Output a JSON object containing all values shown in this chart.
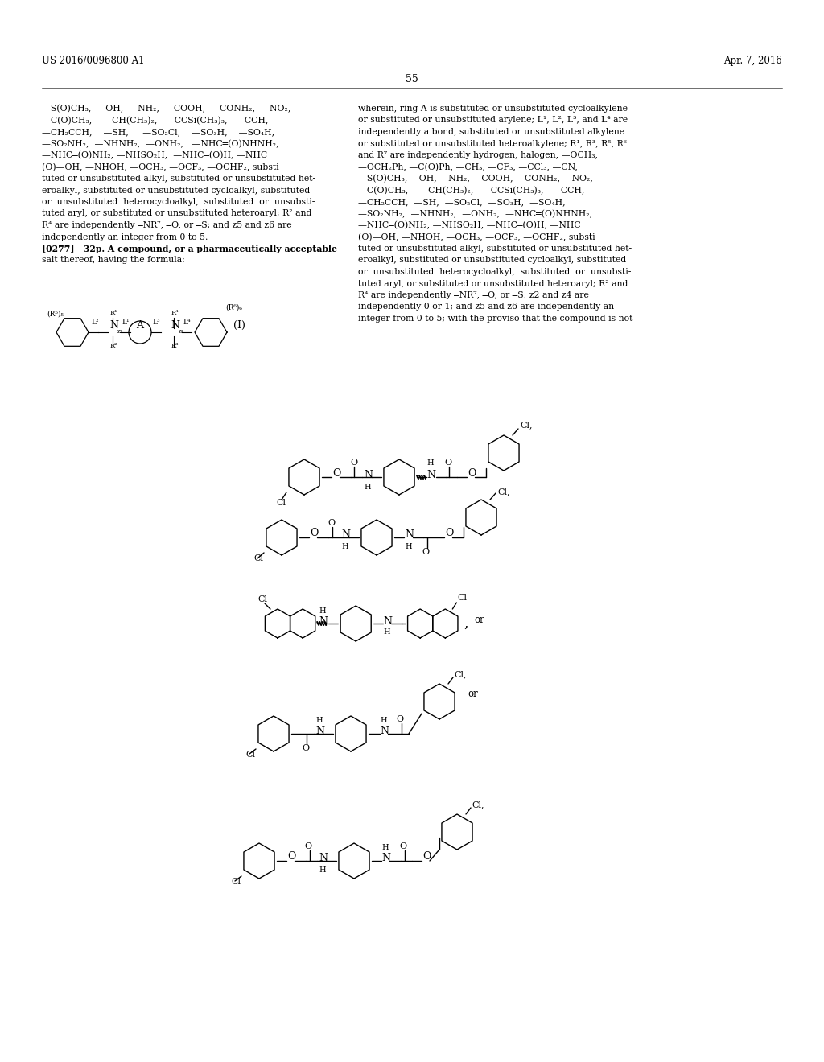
{
  "header_left": "US 2016/0096800 A1",
  "header_right": "Apr. 7, 2016",
  "page_number": "55",
  "background_color": "#ffffff",
  "text_color": "#000000",
  "left_col_lines": [
    "—S(O)CH₃,  —OH,  —NH₂,  —COOH,  —CONH₂,  —NO₂,",
    "—C(O)CH₃,    —CH(CH₃)₂,   —CCSi(CH₃)₃,   —CCH,",
    "—CH₂CCH,    —SH,     —SO₂Cl,    —SO₃H,    —SO₄H,",
    "—SO₂NH₂,  —NHNH₂,  —ONH₂,   —NHC═(O)NHNH₂,",
    "—NHC═(O)NH₂, —NHSO₂H,  —NHC═(O)H, —NHC",
    "(O)—OH, —NHOH, —OCH₃, —OCF₃, —OCHF₂, substi-",
    "tuted or unsubstituted alkyl, substituted or unsubstituted het-",
    "eroalkyl, substituted or unsubstituted cycloalkyl, substituted",
    "or  unsubstituted  heterocycloalkyl,  substituted  or  unsubsti-",
    "tuted aryl, or substituted or unsubstituted heteroaryl; R² and",
    "R⁴ are independently ═NR⁷, ═O, or ═S; and z5 and z6 are",
    "independently an integer from 0 to 5.",
    "[0277]   32p. A compound, or a pharmaceutically acceptable",
    "salt thereof, having the formula:"
  ],
  "right_col_lines": [
    "wherein, ring A is substituted or unsubstituted cycloalkylene",
    "or substituted or unsubstituted arylene; L¹, L², L³, and L⁴ are",
    "independently a bond, substituted or unsubstituted alkylene",
    "or substituted or unsubstituted heteroalkylene; R¹, R³, R⁵, R⁶",
    "and R⁷ are independently hydrogen, halogen, —OCH₃,",
    "—OCH₂Ph, —C(O)Ph, —CH₃, —CF₃, —CCl₃, —CN,",
    "—S(O)CH₃, —OH, —NH₂, —COOH, —CONH₂, —NO₂,",
    "—C(O)CH₃,    —CH(CH₃)₂,   —CCSi(CH₃)₃,   —CCH,",
    "—CH₂CCH,  —SH,  —SO₂Cl,  —SO₃H,  —SO₄H,",
    "—SO₂NH₂,  —NHNH₂,  —ONH₂,  —NHC═(O)NHNH₂,",
    "—NHC═(O)NH₂, —NHSO₂H, —NHC═(O)H, —NHC",
    "(O)—OH, —NHOH, —OCH₃, —OCF₃, —OCHF₂, substi-",
    "tuted or unsubstituted alkyl, substituted or unsubstituted het-",
    "eroalkyl, substituted or unsubstituted cycloalkyl, substituted",
    "or  unsubstituted  heterocycloalkyl,  substituted  or  unsubsti-",
    "tuted aryl, or substituted or unsubstituted heteroaryl; R² and",
    "R⁴ are independently ═NR⁷, ═O, or ═S; z2 and z4 are",
    "independently 0 or 1; and z5 and z6 are independently an",
    "integer from 0 to 5; with the proviso that the compound is not"
  ]
}
